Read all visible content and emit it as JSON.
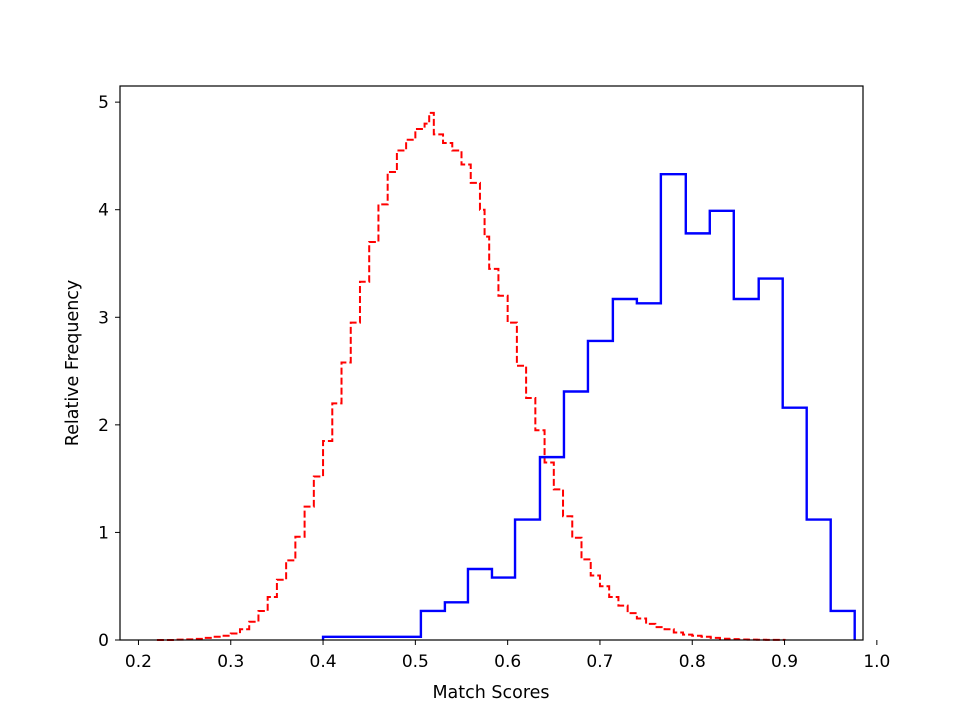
{
  "chart_data": {
    "type": "histogram",
    "title": "",
    "xlabel": "Match Scores",
    "ylabel": "Relative Frequency",
    "xlim": [
      0.18,
      0.985
    ],
    "ylim": [
      0,
      5.15
    ],
    "xticks": [
      0.2,
      0.3,
      0.4,
      0.5,
      0.6,
      0.7,
      0.8,
      0.9,
      1.0
    ],
    "xtick_labels": [
      "0.2",
      "0.3",
      "0.4",
      "0.5",
      "0.6",
      "0.7",
      "0.8",
      "0.9",
      "1.0"
    ],
    "yticks": [
      0,
      1,
      2,
      3,
      4,
      5
    ],
    "ytick_labels": [
      "0",
      "1",
      "2",
      "3",
      "4",
      "5"
    ],
    "grid": false,
    "legend": "none",
    "series": [
      {
        "style": "dashed step",
        "color": "#ff0000",
        "points": [
          [
            0.22,
            0
          ],
          [
            0.24,
            0.003
          ],
          [
            0.25,
            0.006
          ],
          [
            0.26,
            0.01
          ],
          [
            0.27,
            0.02
          ],
          [
            0.28,
            0.03
          ],
          [
            0.29,
            0.04
          ],
          [
            0.3,
            0.06
          ],
          [
            0.31,
            0.1
          ],
          [
            0.32,
            0.17
          ],
          [
            0.33,
            0.27
          ],
          [
            0.34,
            0.4
          ],
          [
            0.35,
            0.56
          ],
          [
            0.36,
            0.74
          ],
          [
            0.37,
            0.96
          ],
          [
            0.38,
            1.24
          ],
          [
            0.39,
            1.52
          ],
          [
            0.4,
            1.85
          ],
          [
            0.41,
            2.2
          ],
          [
            0.42,
            2.58
          ],
          [
            0.43,
            2.95
          ],
          [
            0.44,
            3.33
          ],
          [
            0.45,
            3.7
          ],
          [
            0.46,
            4.05
          ],
          [
            0.47,
            4.35
          ],
          [
            0.48,
            4.55
          ],
          [
            0.49,
            4.65
          ],
          [
            0.5,
            4.75
          ],
          [
            0.51,
            4.8
          ],
          [
            0.515,
            4.9
          ],
          [
            0.52,
            4.7
          ],
          [
            0.53,
            4.62
          ],
          [
            0.54,
            4.55
          ],
          [
            0.55,
            4.42
          ],
          [
            0.56,
            4.25
          ],
          [
            0.57,
            4.0
          ],
          [
            0.575,
            3.75
          ],
          [
            0.58,
            3.45
          ],
          [
            0.59,
            3.2
          ],
          [
            0.6,
            2.95
          ],
          [
            0.61,
            2.55
          ],
          [
            0.62,
            2.25
          ],
          [
            0.63,
            1.95
          ],
          [
            0.64,
            1.65
          ],
          [
            0.65,
            1.4
          ],
          [
            0.66,
            1.15
          ],
          [
            0.67,
            0.95
          ],
          [
            0.68,
            0.75
          ],
          [
            0.69,
            0.6
          ],
          [
            0.7,
            0.5
          ],
          [
            0.71,
            0.4
          ],
          [
            0.72,
            0.32
          ],
          [
            0.73,
            0.25
          ],
          [
            0.74,
            0.2
          ],
          [
            0.75,
            0.15
          ],
          [
            0.76,
            0.12
          ],
          [
            0.77,
            0.1
          ],
          [
            0.78,
            0.07
          ],
          [
            0.79,
            0.05
          ],
          [
            0.8,
            0.04
          ],
          [
            0.81,
            0.03
          ],
          [
            0.82,
            0.02
          ],
          [
            0.83,
            0.012
          ],
          [
            0.84,
            0.008
          ],
          [
            0.85,
            0.005
          ],
          [
            0.86,
            0.003
          ],
          [
            0.87,
            0.002
          ],
          [
            0.88,
            0.001
          ],
          [
            0.9,
            0
          ]
        ]
      },
      {
        "style": "solid step",
        "color": "#0000ff",
        "bin_edges": [
          0.4,
          0.506,
          0.532,
          0.557,
          0.583,
          0.608,
          0.635,
          0.661,
          0.687,
          0.714,
          0.74,
          0.766,
          0.793,
          0.819,
          0.845,
          0.872,
          0.898,
          0.924,
          0.95,
          0.976
        ],
        "values": [
          0.03,
          0.27,
          0.35,
          0.66,
          0.58,
          1.12,
          1.7,
          2.31,
          2.78,
          3.17,
          3.13,
          4.33,
          3.78,
          3.99,
          3.17,
          3.36,
          2.16,
          1.12,
          0.27
        ]
      }
    ]
  }
}
